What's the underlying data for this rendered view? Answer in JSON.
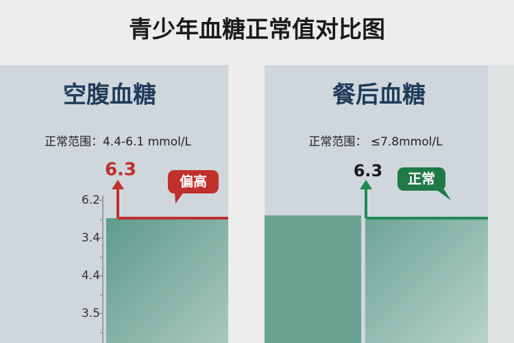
{
  "title": "青少年血糖正常值对比图",
  "panels": [
    {
      "heading": "空腹血糖",
      "range": "正常范围：4.4-6.1 mmol/L",
      "value": "6.3",
      "badge": "偏高",
      "axis_labels": [
        "6.2",
        "3.4",
        "4.4",
        "3.5"
      ]
    },
    {
      "heading": "餐后血糖",
      "range": "正常范围：  ≤7.8mmol/L",
      "value": "6.3",
      "badge": "正常"
    }
  ]
}
